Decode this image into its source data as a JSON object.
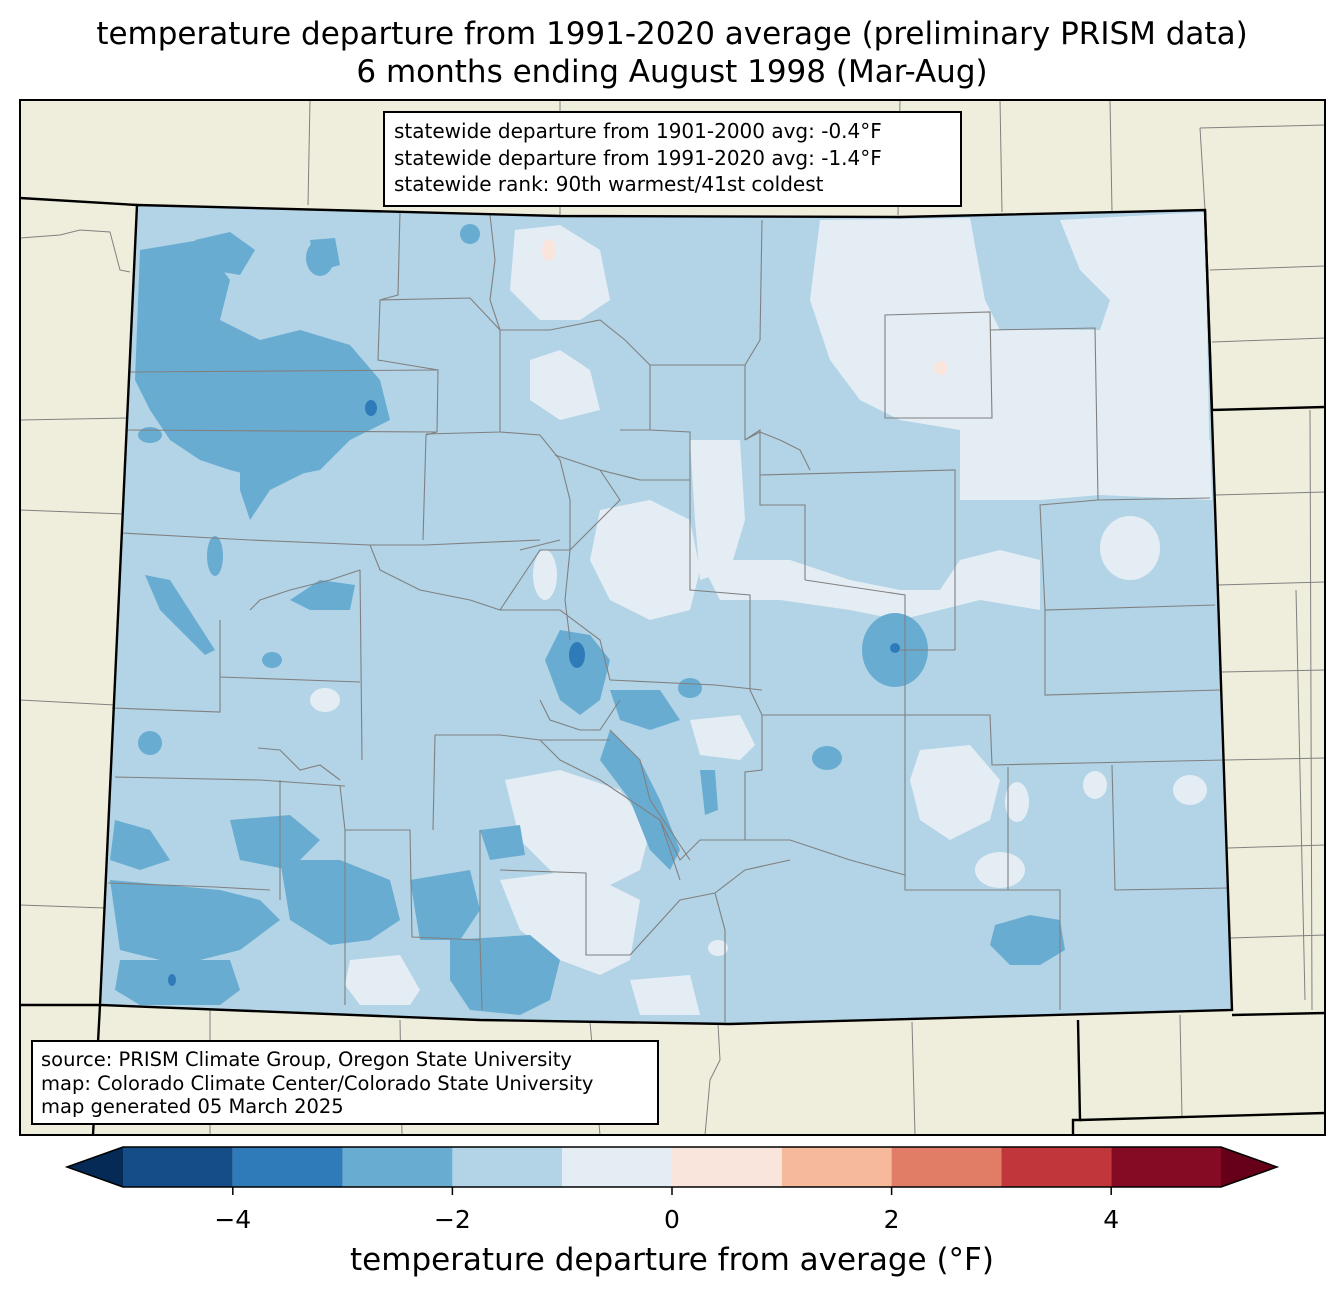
{
  "title": {
    "line1": "temperature departure from 1991-2020 average (preliminary PRISM data)",
    "line2": "6 months ending August 1998 (Mar-Aug)"
  },
  "stats": {
    "line1": "statewide departure from 1901-2000 avg: -0.4°F",
    "line2": "statewide departure from 1991-2020 avg: -1.4°F",
    "line3": "statewide rank: 90th warmest/41st coldest"
  },
  "source": {
    "line1": "source: PRISM Climate Group, Oregon State University",
    "line2": "map: Colorado Climate Center/Colorado State University",
    "line3": "map generated 05 March 2025"
  },
  "colorbar": {
    "label": "temperature departure from average (°F)",
    "bins": [
      -5,
      -4,
      -3,
      -2,
      -1,
      0,
      1,
      2,
      3,
      4,
      5
    ],
    "colors": [
      "#144d88",
      "#2f7bba",
      "#69acd1",
      "#b2d4e6",
      "#e5edf4",
      "#f9e5dc",
      "#f7b99b",
      "#e17d66",
      "#c0363b",
      "#850a24"
    ],
    "under_color": "#052a55",
    "over_color": "#660018",
    "ticks": [
      {
        "value": -4,
        "label": "−4"
      },
      {
        "value": -2,
        "label": "−2"
      },
      {
        "value": 0,
        "label": "0"
      },
      {
        "value": 2,
        "label": "2"
      },
      {
        "value": 4,
        "label": "4"
      }
    ]
  },
  "colors": {
    "land": "#efeedc",
    "base_fill": "#b2d4e6",
    "county_lines": "#808080",
    "state_lines": "#000000"
  }
}
